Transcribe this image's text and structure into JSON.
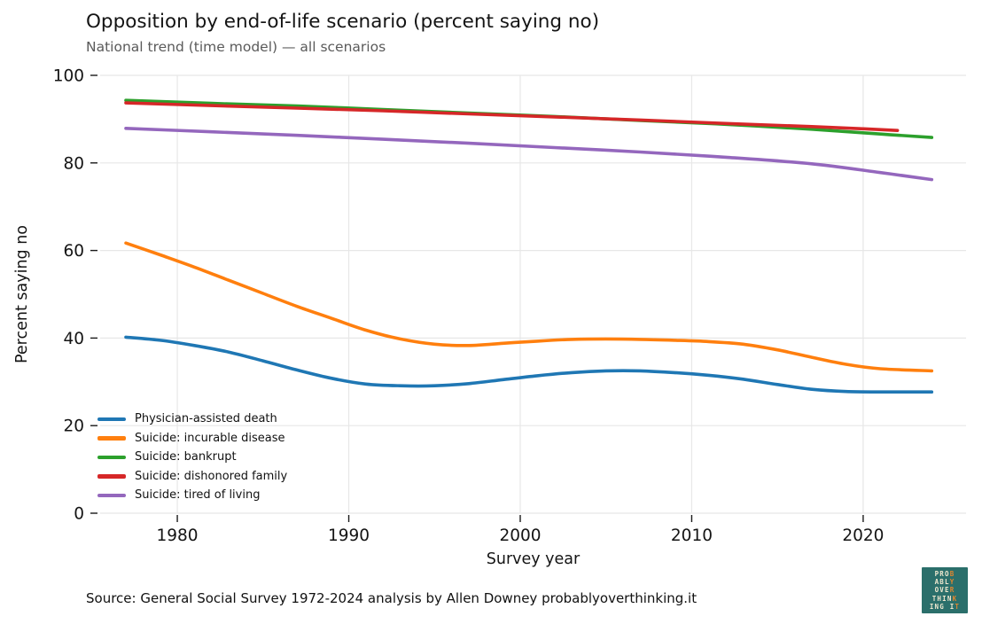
{
  "header": {
    "title": "Opposition by end-of-life scenario (percent saying no)",
    "subtitle": "National trend (time model) — all scenarios"
  },
  "footer": {
    "source": "Source: General Social Survey 1972-2024 analysis by Allen Downey probablyoverthinking.it"
  },
  "logo": {
    "rows": [
      "PROB",
      "ABLY",
      "OVER",
      "THINK",
      "ING IT"
    ],
    "bg_color": "#2b6f6b",
    "text_color": "#efe8cf",
    "accent_color": "#e0862f"
  },
  "chart_data": {
    "type": "line",
    "title": "Opposition by end-of-life scenario (percent saying no)",
    "subtitle": "National trend (time model) — all scenarios",
    "xlabel": "Survey year",
    "ylabel": "Percent saying no",
    "xlim": [
      1975.5,
      2026
    ],
    "ylim": [
      0,
      100
    ],
    "xticks": [
      1980,
      1990,
      2000,
      2010,
      2020
    ],
    "yticks": [
      0,
      20,
      40,
      60,
      80,
      100
    ],
    "grid": true,
    "grid_color": "#e7e7e7",
    "tick_color": "#1a1a1a",
    "tick_label_color": "#141414",
    "legend_position": "lower-left-inside",
    "series": [
      {
        "name": "Physician-assisted death",
        "color": "#1f77b4",
        "points": [
          [
            1977,
            40.2
          ],
          [
            1979,
            39.5
          ],
          [
            1981,
            38.3
          ],
          [
            1983,
            36.8
          ],
          [
            1985,
            34.8
          ],
          [
            1987,
            32.7
          ],
          [
            1989,
            30.8
          ],
          [
            1991,
            29.5
          ],
          [
            1993,
            29.1
          ],
          [
            1995,
            29.1
          ],
          [
            1997,
            29.6
          ],
          [
            1999,
            30.5
          ],
          [
            2001,
            31.4
          ],
          [
            2003,
            32.1
          ],
          [
            2005,
            32.5
          ],
          [
            2007,
            32.5
          ],
          [
            2009,
            32.1
          ],
          [
            2011,
            31.5
          ],
          [
            2013,
            30.6
          ],
          [
            2015,
            29.4
          ],
          [
            2017,
            28.3
          ],
          [
            2019,
            27.8
          ],
          [
            2021,
            27.7
          ],
          [
            2024,
            27.7
          ]
        ]
      },
      {
        "name": "Suicide: incurable disease",
        "color": "#ff7f0e",
        "points": [
          [
            1977,
            61.7
          ],
          [
            1979,
            59.0
          ],
          [
            1981,
            56.2
          ],
          [
            1983,
            53.2
          ],
          [
            1985,
            50.2
          ],
          [
            1987,
            47.2
          ],
          [
            1989,
            44.5
          ],
          [
            1991,
            41.8
          ],
          [
            1993,
            39.8
          ],
          [
            1995,
            38.6
          ],
          [
            1997,
            38.3
          ],
          [
            1999,
            38.8
          ],
          [
            2001,
            39.3
          ],
          [
            2003,
            39.7
          ],
          [
            2005,
            39.8
          ],
          [
            2007,
            39.7
          ],
          [
            2009,
            39.5
          ],
          [
            2011,
            39.2
          ],
          [
            2013,
            38.6
          ],
          [
            2015,
            37.3
          ],
          [
            2017,
            35.6
          ],
          [
            2019,
            34.0
          ],
          [
            2021,
            33.0
          ],
          [
            2024,
            32.5
          ]
        ]
      },
      {
        "name": "Suicide: bankrupt",
        "color": "#2ca02c",
        "points": [
          [
            1977,
            94.3
          ],
          [
            1982,
            93.6
          ],
          [
            1987,
            93.0
          ],
          [
            1992,
            92.2
          ],
          [
            1997,
            91.4
          ],
          [
            2002,
            90.6
          ],
          [
            2007,
            89.7
          ],
          [
            2012,
            88.8
          ],
          [
            2017,
            87.7
          ],
          [
            2021,
            86.6
          ],
          [
            2024,
            85.8
          ]
        ]
      },
      {
        "name": "Suicide: dishonored family",
        "color": "#d62728",
        "points": [
          [
            1977,
            93.7
          ],
          [
            1982,
            93.1
          ],
          [
            1987,
            92.5
          ],
          [
            1992,
            91.9
          ],
          [
            1997,
            91.2
          ],
          [
            2002,
            90.5
          ],
          [
            2007,
            89.8
          ],
          [
            2012,
            89.0
          ],
          [
            2017,
            88.3
          ],
          [
            2020,
            87.8
          ],
          [
            2022,
            87.4
          ]
        ]
      },
      {
        "name": "Suicide: tired of living",
        "color": "#9467bd",
        "points": [
          [
            1977,
            87.9
          ],
          [
            1982,
            87.1
          ],
          [
            1987,
            86.3
          ],
          [
            1992,
            85.4
          ],
          [
            1997,
            84.5
          ],
          [
            2002,
            83.5
          ],
          [
            2007,
            82.5
          ],
          [
            2012,
            81.3
          ],
          [
            2017,
            79.8
          ],
          [
            2021,
            77.8
          ],
          [
            2024,
            76.2
          ]
        ]
      }
    ]
  }
}
